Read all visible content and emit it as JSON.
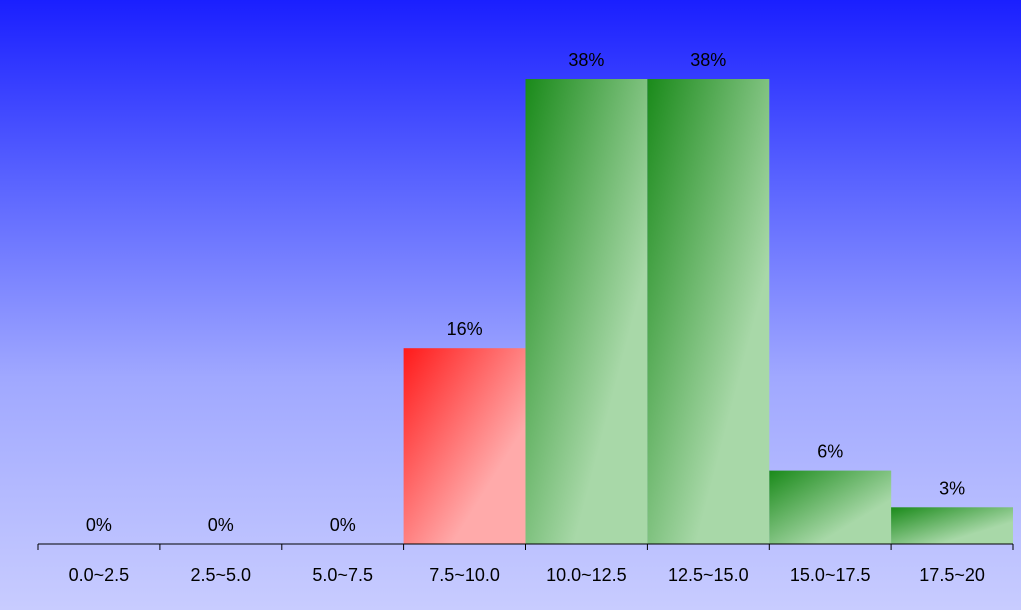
{
  "chart_data": {
    "type": "bar",
    "title": "",
    "xlabel": "",
    "ylabel": "",
    "categories": [
      "0.0~2.5",
      "2.5~5.0",
      "5.0~7.5",
      "7.5~10.0",
      "10.0~12.5",
      "12.5~15.0",
      "15.0~17.5",
      "17.5~20"
    ],
    "values": [
      0,
      0,
      0,
      16,
      38,
      38,
      6,
      3
    ],
    "value_labels": [
      "0%",
      "0%",
      "0%",
      "16%",
      "38%",
      "38%",
      "6%",
      "3%"
    ],
    "ylim": [
      0,
      38
    ],
    "grid": false,
    "legend": "none",
    "bar_colors": [
      "#1a8a1a",
      "#1a8a1a",
      "#1a8a1a",
      "#ff1a1a",
      "#1a8a1a",
      "#1a8a1a",
      "#1a8a1a",
      "#1a8a1a"
    ],
    "bar_light_colors": [
      "#a8d8a8",
      "#a8d8a8",
      "#a8d8a8",
      "#ffaaaa",
      "#a8d8a8",
      "#a8d8a8",
      "#a8d8a8",
      "#a8d8a8"
    ]
  }
}
